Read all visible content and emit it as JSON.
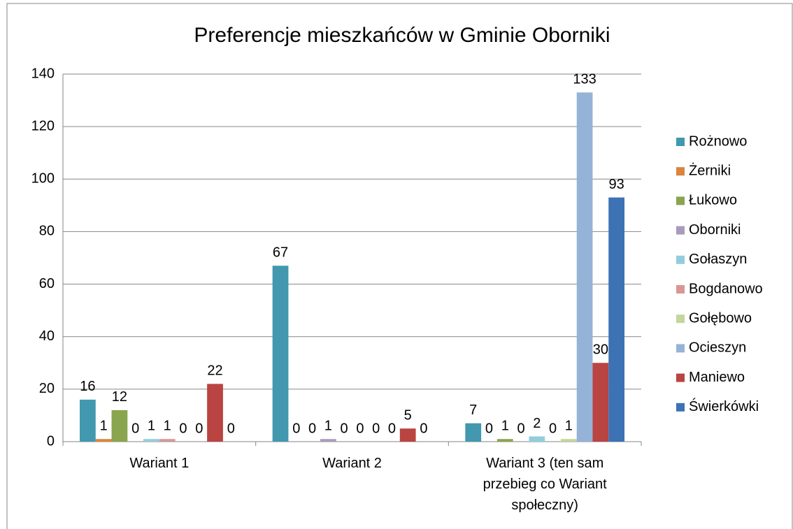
{
  "chart_data": {
    "type": "bar",
    "title": "Preferencje mieszkańców w Gminie Oborniki",
    "categories": [
      "Wariant 1",
      "Wariant 2",
      "Wariant 3 (ten sam przebieg co Wariant społeczny)"
    ],
    "series": [
      {
        "name": "Rożnowo",
        "color": "#4198af",
        "values": [
          16,
          67,
          7
        ]
      },
      {
        "name": "Żerniki",
        "color": "#db843d",
        "values": [
          1,
          0,
          0
        ]
      },
      {
        "name": "Łukowo",
        "color": "#89a54e",
        "values": [
          12,
          0,
          1
        ]
      },
      {
        "name": "Oborniki",
        "color": "#a99bbd",
        "values": [
          0,
          1,
          0
        ]
      },
      {
        "name": "Gołaszyn",
        "color": "#93cddd",
        "values": [
          1,
          0,
          2
        ]
      },
      {
        "name": "Bogdanowo",
        "color": "#d99694",
        "values": [
          1,
          0,
          0
        ]
      },
      {
        "name": "Gołębowo",
        "color": "#c3d69b",
        "values": [
          0,
          0,
          1
        ]
      },
      {
        "name": "Ocieszyn",
        "color": "#95b3d7",
        "values": [
          0,
          0,
          133
        ]
      },
      {
        "name": "Maniewo",
        "color": "#b94441",
        "values": [
          22,
          5,
          30
        ]
      },
      {
        "name": "Świerkówki",
        "color": "#3d72b4",
        "values": [
          0,
          0,
          93
        ]
      }
    ],
    "ylim": [
      0,
      140
    ],
    "yticks": [
      0,
      20,
      40,
      60,
      80,
      100,
      120,
      140
    ],
    "grid": true,
    "legend": "right"
  }
}
